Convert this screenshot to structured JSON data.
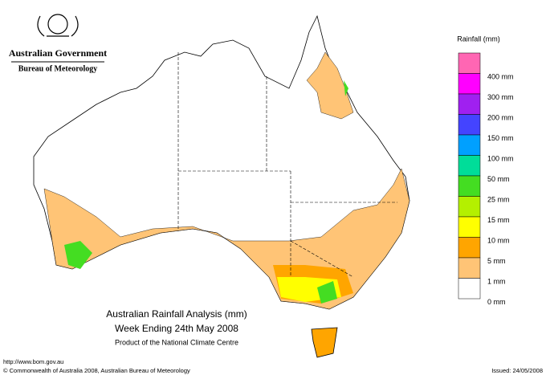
{
  "header": {
    "government": "Australian Government",
    "agency": "Bureau of Meteorology"
  },
  "legend": {
    "title": "Rainfall (mm)",
    "items": [
      {
        "label": "400 mm",
        "color": "#ff66b3"
      },
      {
        "label": "300 mm",
        "color": "#ff00ff"
      },
      {
        "label": "200 mm",
        "color": "#a020f0"
      },
      {
        "label": "150 mm",
        "color": "#4444ff"
      },
      {
        "label": "100 mm",
        "color": "#00a0ff"
      },
      {
        "label": "50 mm",
        "color": "#00dd99"
      },
      {
        "label": "25 mm",
        "color": "#44dd22"
      },
      {
        "label": "15 mm",
        "color": "#b4f000"
      },
      {
        "label": "10 mm",
        "color": "#ffff00"
      },
      {
        "label": "5 mm",
        "color": "#ffa500"
      },
      {
        "label": "1 mm",
        "color": "#ffc476"
      },
      {
        "label": "0 mm",
        "color": "#ffffff"
      }
    ]
  },
  "map_title": [
    "Australian Rainfall Analysis (mm)",
    "Week Ending 24th May 2008",
    "Product of the National Climate Centre"
  ],
  "footer": {
    "url": "http://www.bom.gov.au",
    "copyright": "© Commonwealth of Australia 2008, Australian Bureau of Meteorology",
    "issued": "Issued: 24/05/2008"
  }
}
